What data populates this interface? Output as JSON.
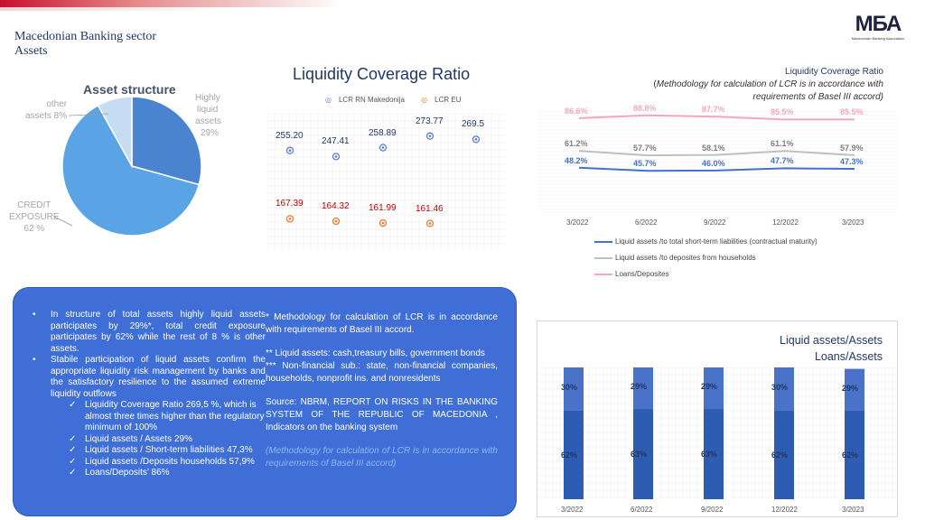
{
  "header": {
    "title_line1": "Macedonian Banking sector",
    "title_line2": "Assets",
    "logo_text": "МБА",
    "logo_sub": "Macedonian Banking Association"
  },
  "pie": {
    "title": "Asset structure",
    "labels": {
      "other": [
        "other",
        "assets 8%"
      ],
      "liquid": [
        "Highly",
        "liquid",
        "assets",
        "29%"
      ],
      "credit": [
        "CREDIT",
        "EXPOSURE",
        "62 %"
      ]
    },
    "chart_data": {
      "type": "pie",
      "categories": [
        "Highly liquid assets",
        "Credit exposure",
        "Other assets"
      ],
      "values": [
        29,
        62,
        8
      ],
      "colors": [
        "#4a83cf",
        "#5aa4e6",
        "#c6dcf3"
      ]
    }
  },
  "lcr": {
    "title": "Liquidity Coverage Ratio",
    "legend": [
      "LCR RN Makedonija",
      "LCR EU"
    ],
    "chart_data": {
      "type": "scatter",
      "categories": [
        "",
        "",
        "",
        "",
        ""
      ],
      "series": [
        {
          "name": "LCR RN Makedonija",
          "values": [
            255.2,
            247.41,
            258.89,
            273.77,
            269.5
          ],
          "labels": [
            "255.20",
            "247.41",
            "258.89",
            "273.77",
            "269.5"
          ],
          "color": "#5b7fd0"
        },
        {
          "name": "LCR EU",
          "values": [
            167.39,
            164.32,
            161.99,
            161.46
          ],
          "labels": [
            "167.39",
            "164.32",
            "161.99",
            "161.46"
          ],
          "color": "#ed7d31"
        }
      ]
    }
  },
  "ratios": {
    "title": "Liquidity Coverage Ratio",
    "subtitle_open": "(",
    "subtitle_line1": "Methodology for calculation of LCR is in accordance with",
    "subtitle_line2": "requirements of Basel III accord)",
    "chart_data": {
      "type": "line",
      "categories": [
        "3/2022",
        "6/2022",
        "9/2022",
        "12/2022",
        "3/2023"
      ],
      "series": [
        {
          "name": "Liquid assets /to total short-term liabilities (contractual maturity)",
          "values": [
            48.2,
            45.7,
            46.0,
            47.7,
            47.3
          ],
          "labels": [
            "48.2%",
            "45.7%",
            "46.0%",
            "47.7%",
            "47.3%"
          ],
          "color": "#4472c4"
        },
        {
          "name": "Liquid assets /to deposites from households",
          "values": [
            61.2,
            57.7,
            58.1,
            61.1,
            57.9
          ],
          "labels": [
            "61.2%",
            "57.7%",
            "58.1%",
            "61.1%",
            "57.9%"
          ],
          "color": "#bfbfbf"
        },
        {
          "name": "Loans/Deposites",
          "values": [
            86.6,
            88.8,
            87.7,
            85.5,
            85.5
          ],
          "labels": [
            "86.6%",
            "88.8%",
            "87.7%",
            "85.5%",
            "85.5%"
          ],
          "color": "#f4a6c0"
        }
      ]
    }
  },
  "textbox": {
    "bullets": [
      "In structure of total assets highly liquid assets participates by 29%*, total credit exposure participates by 62% while the rest of 8 % is other assets.",
      "Stabile participation of liquid assets confirm the appropriate liquidity risk management by banks and the satisfactory resilience to the assumed extreme liquidity outflows"
    ],
    "checks": [
      "Liquidity Coverage Ratio 269,5 %, which is almost three times higher than the regulatory minimum of 100%",
      "Liquid assets / Assets 29%",
      "Liquid assets / Short-term liabilities 47,3%",
      "Liquid assets /Deposits households 57,9%",
      "Loans/Deposits’ 86%"
    ],
    "notes": [
      "* Methodology for calculation of LCR is in accordance with requirements of Basel III accord.",
      "** Liquid assets: cash,treasury bills, government bonds",
      "*** Non-financial sub.: state, non-financial companies, households, nonprofit ins. and nonresidents",
      "Source: NBRM, REPORT ON RISKS IN THE BANKING SYSTEM OF THE REPUBLIC OF MACEDONIA , Indicators on the banking system"
    ],
    "faded_note": "(Methodology for calculation of LCR is in accordance with requirements of Basel III accord)"
  },
  "bars": {
    "title_line1": "Liquid assets/Assets",
    "title_line2": "Loans/Assets",
    "chart_data": {
      "type": "bar",
      "categories": [
        "3/2022",
        "6/2022",
        "9/2022",
        "12/2022",
        "3/2023"
      ],
      "series": [
        {
          "name": "Loans/Assets",
          "values": [
            62,
            63,
            63,
            62,
            62
          ],
          "labels": [
            "62%",
            "63%",
            "63%",
            "62%",
            "62%"
          ],
          "color": "#2f5cb3"
        },
        {
          "name": "Liquid assets/Assets",
          "values": [
            30,
            29,
            29,
            30,
            29
          ],
          "labels": [
            "30%",
            "29%",
            "29%",
            "30%",
            "29%"
          ],
          "color": "#4a72c9"
        }
      ]
    }
  }
}
